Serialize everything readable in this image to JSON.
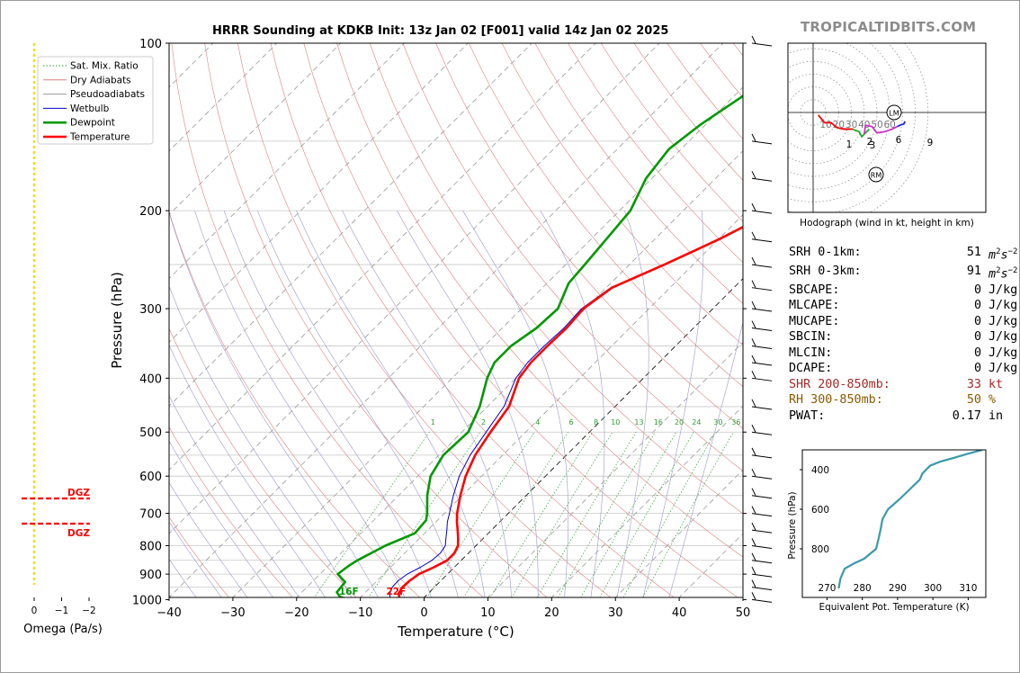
{
  "header": {
    "title": "HRRR Sounding at KDKB Init: 13z Jan 02 [F001] valid 14z Jan 02 2025",
    "brand": "TROPICALTIDBITS.COM"
  },
  "colors": {
    "temperature": "#ff0000",
    "dewpoint": "#009900",
    "wetbulb": "#0000cc",
    "dry_adiabat": "#e08080",
    "moist_adiabat": "#9999cc",
    "mixing_ratio": "#339933",
    "theta_e": "#3a9aaa",
    "omega": "#f0dc2a",
    "dgz": "#ff0000",
    "shr": "#a52a2a",
    "rh": "#8b5a00"
  },
  "chart_data": [
    {
      "id": "skewt",
      "type": "line",
      "title": "HRRR Sounding at KDKB Init: 13z Jan 02 [F001] valid 14z Jan 02 2025",
      "xlabel": "Temperature (°C)",
      "ylabel": "Pressure (hPa)",
      "xlim": [
        -40,
        50
      ],
      "ylim": [
        1050,
        100
      ],
      "y_scale": "log",
      "x_ticks": [
        "−40",
        "−30",
        "−20",
        "−10",
        "0",
        "10",
        "20",
        "30",
        "40",
        "50"
      ],
      "y_ticks": [
        "100",
        "200",
        "300",
        "400",
        "500",
        "600",
        "700",
        "800",
        "900",
        "1000"
      ],
      "legend": {
        "position": "top-left",
        "entries": [
          "Sat. Mix. Ratio",
          "Dry Adiabats",
          "Pseudoadiabats",
          "Wetbulb",
          "Dewpoint",
          "Temperature"
        ]
      },
      "surface_labels": {
        "dewpoint": "16F",
        "temperature": "22F"
      },
      "mixing_ratio_labels": [
        "1",
        "2",
        "4",
        "6",
        "8",
        "10",
        "13",
        "16",
        "20",
        "24",
        "30",
        "36"
      ],
      "series": [
        {
          "name": "Temperature",
          "points": [
            [
              1000,
              -3.5
            ],
            [
              975,
              -4.6
            ],
            [
              950,
              -5.0
            ],
            [
              925,
              -4.9
            ],
            [
              900,
              -4.5
            ],
            [
              875,
              -3.2
            ],
            [
              850,
              -2.2
            ],
            [
              825,
              -2.2
            ],
            [
              800,
              -2.8
            ],
            [
              775,
              -4.0
            ],
            [
              750,
              -5.3
            ],
            [
              725,
              -6.7
            ],
            [
              700,
              -8.0
            ],
            [
              650,
              -10.3
            ],
            [
              600,
              -12.5
            ],
            [
              550,
              -14.3
            ],
            [
              500,
              -15.5
            ],
            [
              450,
              -16.6
            ],
            [
              400,
              -19.5
            ],
            [
              375,
              -20.1
            ],
            [
              350,
              -20.1
            ],
            [
              325,
              -19.9
            ],
            [
              300,
              -20.3
            ],
            [
              275,
              -19.1
            ],
            [
              250,
              -14.5
            ],
            [
              225,
              -9.9
            ],
            [
              200,
              -5.6
            ],
            [
              175,
              -1.0
            ],
            [
              150,
              1.3
            ],
            [
              130,
              3.3
            ],
            [
              115,
              6.4
            ],
            [
              100,
              9.9
            ]
          ]
        },
        {
          "name": "Dewpoint",
          "points": [
            [
              1000,
              -11.2
            ],
            [
              990,
              -13.2
            ],
            [
              970,
              -14.5
            ],
            [
              930,
              -14.8
            ],
            [
              900,
              -17.2
            ],
            [
              870,
              -16.8
            ],
            [
              850,
              -16.3
            ],
            [
              800,
              -14.2
            ],
            [
              760,
              -11.5
            ],
            [
              720,
              -11.8
            ],
            [
              700,
              -12.7
            ],
            [
              650,
              -15.5
            ],
            [
              600,
              -18.0
            ],
            [
              550,
              -19.3
            ],
            [
              500,
              -19.0
            ],
            [
              450,
              -21.2
            ],
            [
              400,
              -24.5
            ],
            [
              375,
              -25.8
            ],
            [
              350,
              -25.8
            ],
            [
              325,
              -24.6
            ],
            [
              300,
              -24.3
            ],
            [
              270,
              -26.6
            ],
            [
              250,
              -27.0
            ],
            [
              225,
              -27.6
            ],
            [
              200,
              -28.3
            ],
            [
              175,
              -30.9
            ],
            [
              155,
              -31.9
            ],
            [
              140,
              -30.8
            ],
            [
              125,
              -28.7
            ],
            [
              112,
              -27.3
            ],
            [
              100,
              -25.3
            ]
          ]
        },
        {
          "name": "Wetbulb",
          "points": [
            [
              1000,
              -5.0
            ],
            [
              975,
              -6.0
            ],
            [
              950,
              -6.6
            ],
            [
              925,
              -6.7
            ],
            [
              900,
              -6.3
            ],
            [
              875,
              -5.3
            ],
            [
              850,
              -4.6
            ],
            [
              825,
              -4.4
            ],
            [
              800,
              -4.8
            ],
            [
              775,
              -5.9
            ],
            [
              750,
              -7.0
            ],
            [
              725,
              -8.2
            ],
            [
              700,
              -9.2
            ],
            [
              650,
              -11.4
            ],
            [
              600,
              -13.5
            ],
            [
              550,
              -15.1
            ],
            [
              500,
              -16.2
            ],
            [
              450,
              -17.4
            ],
            [
              400,
              -20.0
            ],
            [
              375,
              -20.6
            ],
            [
              350,
              -20.6
            ],
            [
              325,
              -20.3
            ],
            [
              300,
              -20.6
            ],
            [
              275,
              -19.3
            ],
            [
              250,
              -14.7
            ],
            [
              225,
              -10.0
            ],
            [
              200,
              -5.8
            ],
            [
              175,
              -1.5
            ],
            [
              150,
              0.6
            ],
            [
              130,
              2.6
            ],
            [
              115,
              5.4
            ],
            [
              100,
              9.2
            ]
          ]
        }
      ]
    },
    {
      "id": "hodograph",
      "type": "line",
      "title": "Hodograph (wind in kt, height in km)",
      "ring_labels": [
        "10",
        "20",
        "30",
        "40",
        "50",
        "60"
      ],
      "storm_markers": [
        "LM",
        "RM"
      ],
      "height_labels": [
        "1",
        "2",
        "3",
        "6",
        "9"
      ],
      "segments": [
        {
          "range": "0-1 km",
          "color": "#ff0000",
          "points": [
            [
              4,
              -2
            ],
            [
              9,
              -8
            ],
            [
              14,
              -8
            ],
            [
              19,
              -12
            ],
            [
              24,
              -13
            ],
            [
              29,
              -13
            ]
          ]
        },
        {
          "range": "1-3 km",
          "color": "#ee0000",
          "points": [
            [
              24,
              -13
            ],
            [
              29,
              -13
            ],
            [
              31,
              -13
            ]
          ]
        },
        {
          "range": "3-6 km",
          "color": "#22aa22",
          "points": [
            [
              31,
              -13
            ],
            [
              33,
              -14
            ],
            [
              36,
              -15
            ],
            [
              38,
              -19
            ],
            [
              40,
              -17
            ],
            [
              44,
              -13
            ]
          ]
        },
        {
          "range": "6-9 km",
          "color": "#cc33cc",
          "points": [
            [
              40,
              -17
            ],
            [
              41,
              -10
            ],
            [
              46,
              -11
            ],
            [
              50,
              -16
            ],
            [
              56,
              -15
            ],
            [
              62,
              -13
            ],
            [
              66,
              -11
            ]
          ]
        },
        {
          "range": "9+ km",
          "color": "#2222ff",
          "points": [
            [
              66,
              -11
            ],
            [
              68,
              -10
            ],
            [
              71,
              -9
            ],
            [
              72,
              -7
            ]
          ]
        }
      ]
    },
    {
      "id": "theta_e",
      "type": "line",
      "xlabel": "Equivalent Pot. Temperature (K)",
      "ylabel": "Pressure (hPa)",
      "xlim": [
        263,
        315
      ],
      "ylim": [
        1000,
        300
      ],
      "x_ticks": [
        "270",
        "280",
        "290",
        "300",
        "310"
      ],
      "y_ticks": [
        "400",
        "600",
        "800"
      ],
      "series": [
        {
          "name": "Theta-E",
          "values": [
            [
              1000,
              273.3
            ],
            [
              950,
              273.8
            ],
            [
              900,
              275.0
            ],
            [
              875,
              277.5
            ],
            [
              850,
              280.5
            ],
            [
              800,
              283.9
            ],
            [
              750,
              284.6
            ],
            [
              700,
              285.2
            ],
            [
              650,
              285.7
            ],
            [
              600,
              287.3
            ],
            [
              550,
              290.5
            ],
            [
              500,
              293.4
            ],
            [
              450,
              296.3
            ],
            [
              420,
              297.0
            ],
            [
              380,
              299.2
            ],
            [
              360,
              302.0
            ],
            [
              340,
              306.0
            ],
            [
              320,
              309.8
            ],
            [
              300,
              314.0
            ]
          ]
        }
      ]
    },
    {
      "id": "omega",
      "type": "bar",
      "xlabel": "Omega (Pa/s)",
      "x_ticks": [
        "0",
        "−1",
        "−2"
      ],
      "dgz_label": "DGZ"
    }
  ],
  "parameters": [
    {
      "label": "SRH 0-1km:",
      "value": "51",
      "unit": "m2s-2",
      "style": "srh"
    },
    {
      "label": "SRH 0-3km:",
      "value": "91",
      "unit": "m2s-2",
      "style": "srh"
    },
    {
      "label": "SBCAPE:",
      "value": "0",
      "unit": "J/kg"
    },
    {
      "label": "MLCAPE:",
      "value": "0",
      "unit": "J/kg"
    },
    {
      "label": "MUCAPE:",
      "value": "0",
      "unit": "J/kg"
    },
    {
      "label": "SBCIN:",
      "value": "0",
      "unit": "J/kg"
    },
    {
      "label": "MLCIN:",
      "value": "0",
      "unit": "J/kg"
    },
    {
      "label": "DCAPE:",
      "value": "0",
      "unit": "J/kg"
    },
    {
      "label": "SHR 200-850mb:",
      "value": "33",
      "unit": "kt",
      "style": "shr"
    },
    {
      "label": "RH 300-850mb:",
      "value": "50",
      "unit": "%",
      "style": "rh"
    },
    {
      "label": "PWAT:",
      "value": "0.17",
      "unit": "in"
    }
  ],
  "srh_unit": {
    "base": "m",
    "sup1": "2",
    "mid": "s",
    "sup2": "−2"
  }
}
